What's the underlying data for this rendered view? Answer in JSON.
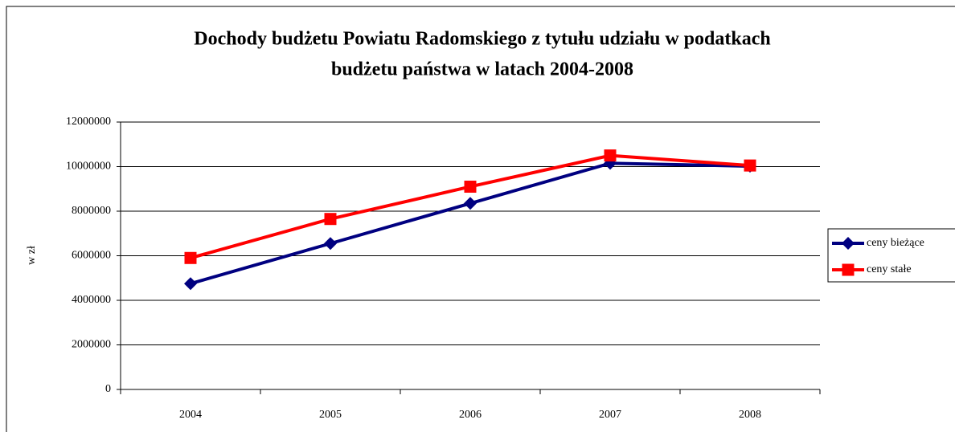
{
  "chart_data": {
    "type": "line",
    "title": [
      "Dochody budżetu Powiatu Radomskiego z tytułu udziału w podatkach",
      "budżetu państwa w latach 2004-2008"
    ],
    "y_label": "w zł",
    "categories": [
      "2004",
      "2005",
      "2006",
      "2007",
      "2008"
    ],
    "series": [
      {
        "name": "ceny bieżące",
        "color": "#000080",
        "marker": "diamond",
        "values": [
          4750000,
          6550000,
          8350000,
          10150000,
          10020000
        ]
      },
      {
        "name": "ceny stałe",
        "color": "#ff0000",
        "marker": "square",
        "values": [
          5900000,
          7650000,
          9100000,
          10500000,
          10050000
        ]
      }
    ],
    "ylim": [
      0,
      12000000
    ],
    "yticks": [
      0,
      2000000,
      4000000,
      6000000,
      8000000,
      10000000,
      12000000
    ],
    "grid": true,
    "legend": "right"
  }
}
